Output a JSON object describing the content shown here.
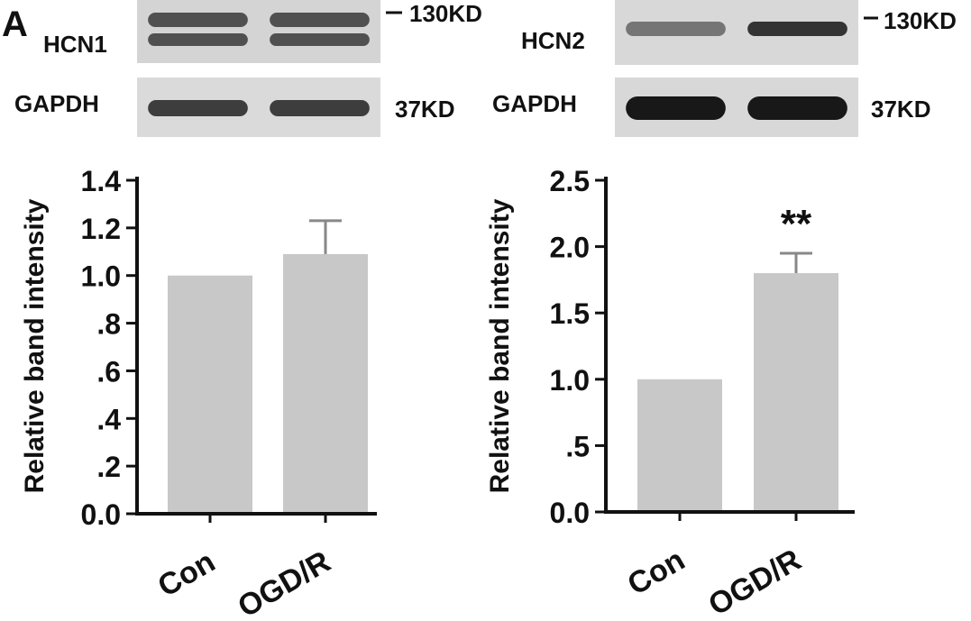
{
  "panel_letter": "A",
  "blots": [
    {
      "target_label": "HCN1",
      "target_size": "130KD",
      "loading_label": "GAPDH",
      "loading_size": "37KD",
      "target_band_intensity": [
        0.65,
        0.65
      ],
      "loading_band_intensity": [
        0.75,
        0.75
      ]
    },
    {
      "target_label": "HCN2",
      "target_size": "130KD",
      "loading_label": "GAPDH",
      "loading_size": "37KD",
      "target_band_intensity": [
        0.45,
        0.8
      ],
      "loading_band_intensity": [
        0.95,
        0.95
      ]
    }
  ],
  "chart_data": [
    {
      "type": "bar",
      "categories": [
        "Con",
        "OGD/R"
      ],
      "values": [
        1.0,
        1.09
      ],
      "error": [
        0,
        0.14
      ],
      "ylabel": "Relative band intensity",
      "ylim": [
        0,
        1.4
      ],
      "yticks": [
        0.0,
        0.2,
        0.4,
        0.6,
        0.8,
        1.0,
        1.2,
        1.4
      ],
      "ytick_labels": [
        "0.0",
        ".2",
        ".4",
        ".6",
        ".8",
        "1.0",
        "1.2",
        "1.4"
      ],
      "significance": [
        "",
        ""
      ],
      "bar_color": "#c8c8c8"
    },
    {
      "type": "bar",
      "categories": [
        "Con",
        "OGD/R"
      ],
      "values": [
        1.0,
        1.8
      ],
      "error": [
        0,
        0.15
      ],
      "ylabel": "Relative band intensity",
      "ylim": [
        0,
        2.5
      ],
      "yticks": [
        0.0,
        0.5,
        1.0,
        1.5,
        2.0,
        2.5
      ],
      "ytick_labels": [
        "0.0",
        ".5",
        "1.0",
        "1.5",
        "2.0",
        "2.5"
      ],
      "significance": [
        "",
        "**"
      ],
      "bar_color": "#c8c8c8"
    }
  ]
}
